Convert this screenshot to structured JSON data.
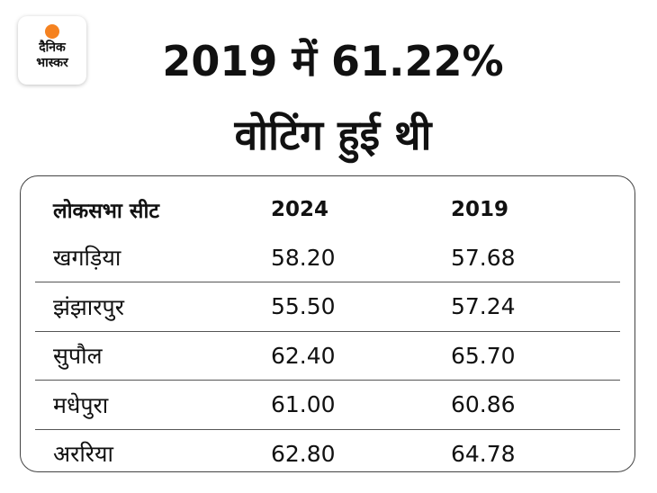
{
  "logo": {
    "brand": [
      "दैनिक",
      "भास्कर"
    ]
  },
  "title": [
    "2019 में 61.22%",
    "वोटिंग हुई थी"
  ],
  "table": {
    "header": [
      "लोकसभा सीट",
      "2024",
      "2019"
    ],
    "rows": [
      [
        "खगड़िया",
        "58.20",
        "57.68"
      ],
      [
        "झंझारपुर",
        "55.50",
        "57.24"
      ],
      [
        "सुपौल",
        "62.40",
        "65.70"
      ],
      [
        "मधेपुरा",
        "61.00",
        "60.86"
      ],
      [
        "अररिया",
        "62.80",
        "64.78"
      ]
    ]
  }
}
